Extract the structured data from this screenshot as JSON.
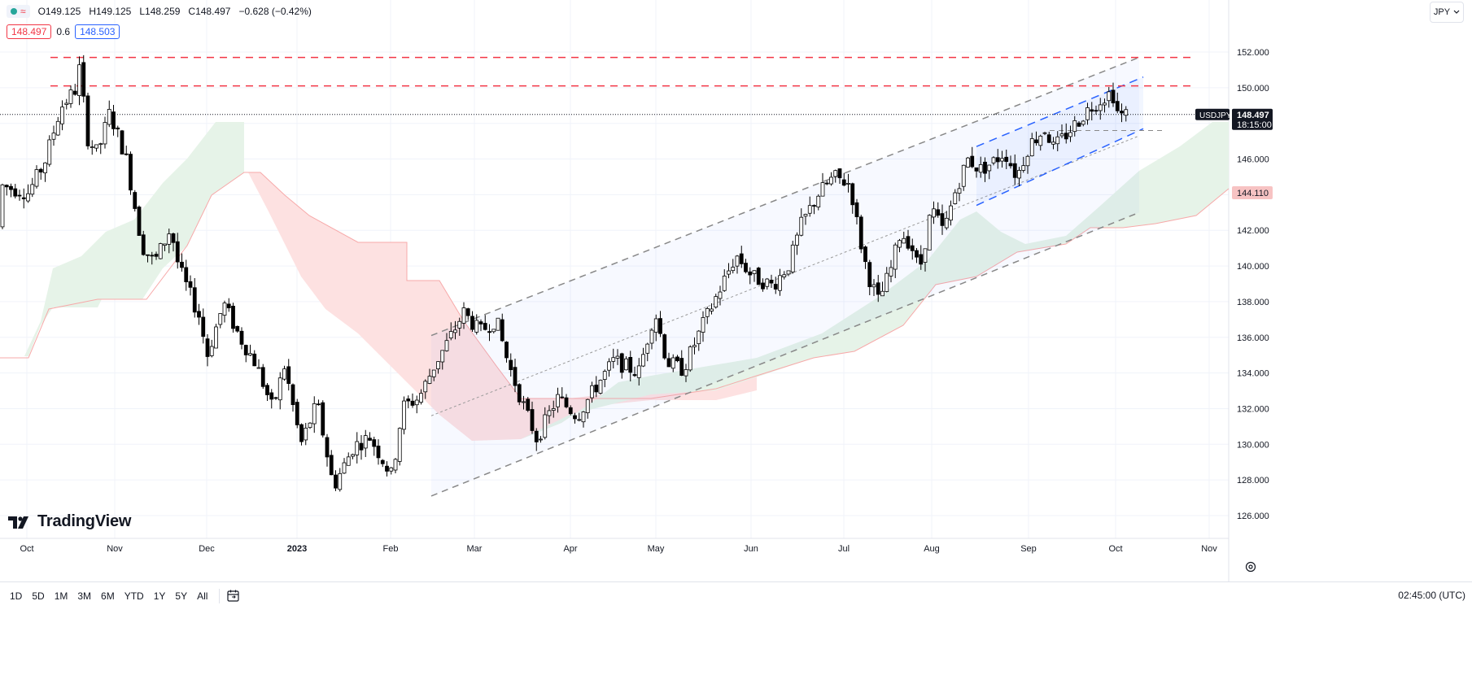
{
  "legend": {
    "open": "O149.125",
    "high": "H149.125",
    "low": "L148.259",
    "close": "C148.497",
    "change": "−0.628 (−0.42%)"
  },
  "quote": {
    "bid": "148.497",
    "spread": "0.6",
    "ask": "148.503"
  },
  "currency": "JPY",
  "brand": "TradingView",
  "price_label": {
    "symbol": "USDJPY",
    "price": "148.497",
    "countdown": "18:15:00"
  },
  "kumo_label": "144.110",
  "time_axis": {
    "ticks": [
      {
        "label": "Oct"
      },
      {
        "label": "Nov"
      },
      {
        "label": "Dec"
      },
      {
        "label": "2023",
        "bold": true
      },
      {
        "label": "Feb"
      },
      {
        "label": "Mar"
      },
      {
        "label": "Apr"
      },
      {
        "label": "May"
      },
      {
        "label": "Jun"
      },
      {
        "label": "Jul"
      },
      {
        "label": "Aug"
      },
      {
        "label": "Sep"
      },
      {
        "label": "Oct"
      },
      {
        "label": "Nov"
      }
    ]
  },
  "price_axis": {
    "ticks": [
      "152.000",
      "150.000",
      "148.000",
      "146.000",
      "144.000",
      "142.000",
      "140.000",
      "138.000",
      "136.000",
      "134.000",
      "132.000",
      "130.000",
      "128.000",
      "126.000"
    ]
  },
  "ranges": [
    "1D",
    "5D",
    "1M",
    "3M",
    "6M",
    "YTD",
    "1Y",
    "5Y",
    "All"
  ],
  "clock": "02:45:00 (UTC)",
  "colors": {
    "up": "#ffffff",
    "down": "#000000",
    "resistance": "#f23645",
    "channel": "#888888",
    "short_channel": "#2962ff",
    "kumo_bull": "#e6f3e8",
    "kumo_bear": "#fde1e1"
  },
  "chart_data": {
    "type": "candlestick",
    "symbol": "USDJPY",
    "interval": "1D",
    "ylim": [
      125.5,
      153.2
    ],
    "y_ticks": [
      126,
      128,
      130,
      132,
      134,
      136,
      138,
      140,
      142,
      144,
      146,
      148,
      150,
      152
    ],
    "x_ticks": [
      "Oct",
      "Nov",
      "Dec",
      "2023",
      "Feb",
      "Mar",
      "Apr",
      "May",
      "Jun",
      "Jul",
      "Aug",
      "Sep",
      "Oct",
      "Nov"
    ],
    "resistance_levels": [
      150.1,
      151.7
    ],
    "last_price": 148.497,
    "kumo_value": 144.11,
    "path_anchors": [
      [
        0,
        142.2
      ],
      [
        8,
        144.5
      ],
      [
        40,
        144.1
      ],
      [
        60,
        145.8
      ],
      [
        80,
        148.9
      ],
      [
        100,
        150.0
      ],
      [
        105,
        151.9
      ],
      [
        110,
        147.4
      ],
      [
        125,
        146.3
      ],
      [
        140,
        148.6
      ],
      [
        160,
        146.1
      ],
      [
        180,
        141.1
      ],
      [
        195,
        140.2
      ],
      [
        215,
        142.1
      ],
      [
        225,
        139.9
      ],
      [
        250,
        137.2
      ],
      [
        260,
        135.0
      ],
      [
        280,
        137.9
      ],
      [
        300,
        136.0
      ],
      [
        320,
        134.5
      ],
      [
        340,
        132.0
      ],
      [
        355,
        134.4
      ],
      [
        375,
        130.0
      ],
      [
        395,
        132.3
      ],
      [
        415,
        127.6
      ],
      [
        440,
        129.9
      ],
      [
        460,
        130.4
      ],
      [
        487,
        128.2
      ],
      [
        500,
        132.1
      ],
      [
        520,
        132.6
      ],
      [
        540,
        134.5
      ],
      [
        560,
        136.1
      ],
      [
        575,
        137.4
      ],
      [
        595,
        136.3
      ],
      [
        615,
        137.0
      ],
      [
        630,
        134.5
      ],
      [
        650,
        132.0
      ],
      [
        665,
        130.3
      ],
      [
        690,
        132.6
      ],
      [
        715,
        131.6
      ],
      [
        740,
        133.4
      ],
      [
        760,
        134.7
      ],
      [
        790,
        134.0
      ],
      [
        810,
        137.5
      ],
      [
        825,
        134.6
      ],
      [
        845,
        134.2
      ],
      [
        870,
        136.8
      ],
      [
        890,
        138.7
      ],
      [
        910,
        140.6
      ],
      [
        930,
        139.4
      ],
      [
        955,
        138.9
      ],
      [
        975,
        140.1
      ],
      [
        990,
        142.3
      ],
      [
        1010,
        144.0
      ],
      [
        1030,
        145.0
      ],
      [
        1050,
        144.6
      ],
      [
        1062,
        141.5
      ],
      [
        1072,
        139.5
      ],
      [
        1085,
        138.0
      ],
      [
        1100,
        139.8
      ],
      [
        1112,
        141.9
      ],
      [
        1125,
        141.2
      ],
      [
        1135,
        139.7
      ],
      [
        1150,
        143.2
      ],
      [
        1165,
        141.9
      ],
      [
        1180,
        144.3
      ],
      [
        1195,
        146.0
      ],
      [
        1210,
        145.4
      ],
      [
        1225,
        145.8
      ],
      [
        1240,
        146.4
      ],
      [
        1255,
        145.0
      ],
      [
        1270,
        146.8
      ],
      [
        1290,
        147.7
      ],
      [
        1300,
        146.6
      ],
      [
        1320,
        147.6
      ],
      [
        1345,
        148.9
      ],
      [
        1360,
        149.4
      ],
      [
        1372,
        149.8
      ],
      [
        1380,
        148.4
      ],
      [
        1387,
        148.5
      ]
    ],
    "channel_wide": {
      "upper": [
        [
          530,
          136.1
        ],
        [
          1400,
          151.7
        ]
      ],
      "lower": [
        [
          530,
          127.1
        ],
        [
          1400,
          143.0
        ]
      ],
      "mid": [
        [
          530,
          131.6
        ],
        [
          1400,
          147.3
        ]
      ]
    },
    "channel_short": {
      "upper": [
        [
          1200,
          146.7
        ],
        [
          1405,
          150.6
        ]
      ],
      "lower": [
        [
          1200,
          143.4
        ],
        [
          1405,
          147.7
        ]
      ]
    }
  }
}
